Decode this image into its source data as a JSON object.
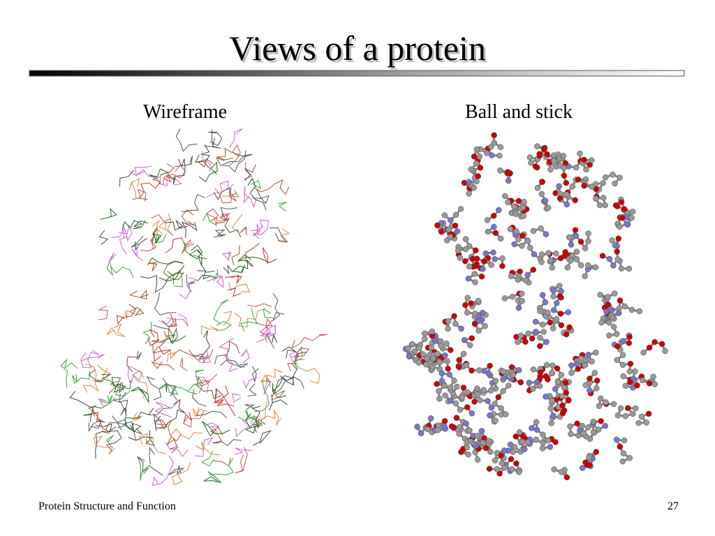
{
  "slide": {
    "title": "Views of a protein",
    "panels": [
      {
        "caption": "Wireframe"
      },
      {
        "caption": "Ball and stick"
      }
    ],
    "footer": {
      "text": "Protein Structure and Function",
      "page_number": 27
    }
  }
}
